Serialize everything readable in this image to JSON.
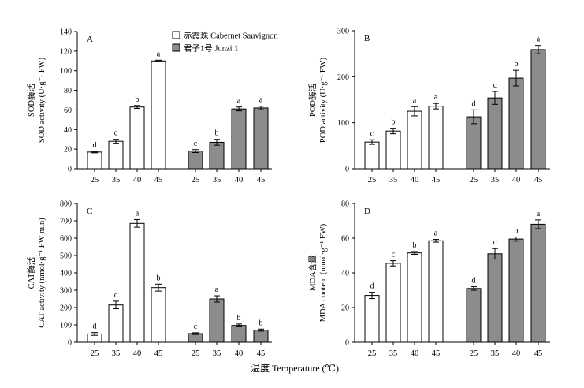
{
  "figure": {
    "xlabel": "温度 Temperature (℃)",
    "legend": [
      {
        "label": "赤霞珠 Cabernet Sauvignon",
        "fill": "#ffffff"
      },
      {
        "label": "君子1号 Junzi 1",
        "fill": "#8c8c8c"
      }
    ],
    "colors": {
      "white_bar": "#ffffff",
      "gray_bar": "#8c8c8c",
      "ink": "#000000"
    }
  },
  "chart_data": [
    {
      "type": "bar",
      "panel": "A",
      "ylabel_cn": "SOD酶活",
      "ylabel": "SOD activity (U·g⁻¹ FW)",
      "ylim": [
        0,
        140
      ],
      "yticks": [
        0,
        20,
        40,
        60,
        80,
        100,
        120,
        140
      ],
      "categories": [
        "25",
        "35",
        "40",
        "45"
      ],
      "series": [
        {
          "name": "赤霞珠 Cabernet Sauvignon",
          "values": [
            17,
            28,
            63,
            110
          ],
          "errors": [
            0.8,
            2,
            1.5,
            0.8
          ],
          "letters": [
            "d",
            "c",
            "b",
            "a"
          ]
        },
        {
          "name": "君子1号 Junzi 1",
          "values": [
            18,
            27,
            61,
            62
          ],
          "errors": [
            1.5,
            3,
            2,
            1.8
          ],
          "letters": [
            "c",
            "b",
            "a",
            "a"
          ]
        }
      ]
    },
    {
      "type": "bar",
      "panel": "B",
      "ylabel_cn": "POD酶活",
      "ylabel": "POD activity (U·g⁻¹ FW)",
      "ylim": [
        0,
        300
      ],
      "yticks": [
        0,
        100,
        200,
        300
      ],
      "categories": [
        "25",
        "35",
        "40",
        "45"
      ],
      "series": [
        {
          "name": "赤霞珠 Cabernet Sauvignon",
          "values": [
            58,
            82,
            125,
            136
          ],
          "errors": [
            5,
            6,
            10,
            6
          ],
          "letters": [
            "c",
            "b",
            "a",
            "a"
          ]
        },
        {
          "name": "君子1号 Junzi 1",
          "values": [
            113,
            154,
            197,
            259
          ],
          "errors": [
            15,
            14,
            17,
            9
          ],
          "letters": [
            "d",
            "c",
            "b",
            "a"
          ]
        }
      ]
    },
    {
      "type": "bar",
      "panel": "C",
      "ylabel_cn": "CAT酶活",
      "ylabel": "CAT activity (nmol·g⁻¹ FW min)",
      "ylim": [
        0,
        800
      ],
      "yticks": [
        0,
        100,
        200,
        300,
        400,
        500,
        600,
        700,
        800
      ],
      "categories": [
        "25",
        "35",
        "40",
        "45"
      ],
      "series": [
        {
          "name": "赤霞珠 Cabernet Sauvignon",
          "values": [
            48,
            215,
            685,
            315
          ],
          "errors": [
            8,
            22,
            22,
            20
          ],
          "letters": [
            "d",
            "c",
            "a",
            "b"
          ]
        },
        {
          "name": "君子1号 Junzi 1",
          "values": [
            50,
            250,
            97,
            70
          ],
          "errors": [
            5,
            18,
            8,
            6
          ],
          "letters": [
            "c",
            "a",
            "b",
            "b"
          ]
        }
      ]
    },
    {
      "type": "bar",
      "panel": "D",
      "ylabel_cn": "MDA含量",
      "ylabel": "MDA content (nmol·g⁻¹ FW)",
      "ylim": [
        0,
        80
      ],
      "yticks": [
        0,
        20,
        40,
        60,
        80
      ],
      "categories": [
        "25",
        "35",
        "40",
        "45"
      ],
      "series": [
        {
          "name": "赤霞珠 Cabernet Sauvignon",
          "values": [
            27,
            45.5,
            51.5,
            58.5
          ],
          "errors": [
            1.8,
            1.5,
            0.8,
            0.8
          ],
          "letters": [
            "d",
            "c",
            "b",
            "a"
          ]
        },
        {
          "name": "君子1号 Junzi 1",
          "values": [
            31,
            51,
            59.5,
            68
          ],
          "errors": [
            1,
            3,
            1.2,
            2.5
          ],
          "letters": [
            "d",
            "c",
            "b",
            "a"
          ]
        }
      ]
    }
  ]
}
